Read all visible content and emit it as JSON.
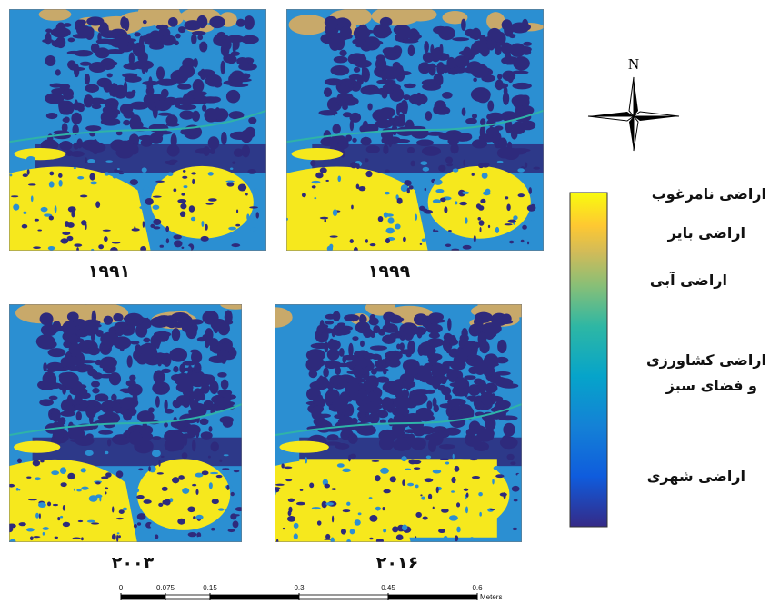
{
  "panels": [
    {
      "label": "۱۹۹۱"
    },
    {
      "label": "۱۹۹۹"
    },
    {
      "label": "۲۰۰۳"
    },
    {
      "label": "۲۰۱۶"
    }
  ],
  "north": "N",
  "legend": {
    "labels": [
      "اراضی نامرغوب",
      "اراضی بایر",
      "اراضی آبی",
      "اراضی کشاورزی",
      "و فضای سبز",
      "اراضی شهری"
    ]
  },
  "scale_bar": {
    "ticks": [
      0,
      0.075,
      0.15,
      0.3,
      0.45,
      0.6
    ],
    "unit": "Meters"
  }
}
